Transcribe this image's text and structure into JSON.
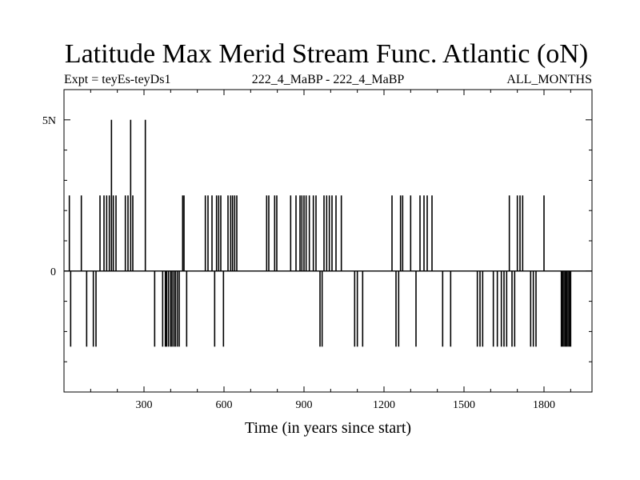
{
  "chart_data": {
    "type": "line",
    "title": "Latitude Max Merid Stream Func. Atlantic (oN)",
    "subtitle_left": "Expt = teyEs-teyDs1",
    "subtitle_center": "222_4_MaBP - 222_4_MaBP",
    "subtitle_right": "ALL_MONTHS",
    "xlabel": "Time (in years since start)",
    "ylabel": "",
    "xlim": [
      0,
      1980
    ],
    "ylim": [
      -4,
      6
    ],
    "x_ticks": [
      300,
      600,
      900,
      1200,
      1500,
      1800
    ],
    "x_tick_labels": [
      "300",
      "600",
      "900",
      "1200",
      "1500",
      "1800"
    ],
    "y_ticks": [
      0,
      5
    ],
    "y_tick_labels": [
      "0",
      "5N"
    ],
    "series": [
      {
        "name": "teyEs-teyDs1",
        "spikes": [
          {
            "x": 20,
            "y": 2.5
          },
          {
            "x": 25,
            "y": -2.5
          },
          {
            "x": 65,
            "y": 2.5
          },
          {
            "x": 85,
            "y": -2.5
          },
          {
            "x": 110,
            "y": -2.5
          },
          {
            "x": 120,
            "y": -2.5
          },
          {
            "x": 135,
            "y": 2.5
          },
          {
            "x": 150,
            "y": 2.5
          },
          {
            "x": 160,
            "y": 2.5
          },
          {
            "x": 170,
            "y": 2.5
          },
          {
            "x": 178,
            "y": 5
          },
          {
            "x": 185,
            "y": 2.5
          },
          {
            "x": 195,
            "y": 2.5
          },
          {
            "x": 230,
            "y": 2.5
          },
          {
            "x": 240,
            "y": 2.5
          },
          {
            "x": 250,
            "y": 5
          },
          {
            "x": 258,
            "y": 2.5
          },
          {
            "x": 305,
            "y": 5
          },
          {
            "x": 340,
            "y": -2.5
          },
          {
            "x": 370,
            "y": -2.5
          },
          {
            "x": 380,
            "y": -2.5
          },
          {
            "x": 385,
            "y": -2.5
          },
          {
            "x": 392,
            "y": -2.5
          },
          {
            "x": 400,
            "y": -2.5
          },
          {
            "x": 405,
            "y": -2.5
          },
          {
            "x": 412,
            "y": -2.5
          },
          {
            "x": 418,
            "y": -2.5
          },
          {
            "x": 425,
            "y": -2.5
          },
          {
            "x": 432,
            "y": -2.5
          },
          {
            "x": 445,
            "y": 2.5
          },
          {
            "x": 450,
            "y": 2.5
          },
          {
            "x": 460,
            "y": -2.5
          },
          {
            "x": 530,
            "y": 2.5
          },
          {
            "x": 540,
            "y": 2.5
          },
          {
            "x": 555,
            "y": 2.5
          },
          {
            "x": 565,
            "y": -2.5
          },
          {
            "x": 572,
            "y": 2.5
          },
          {
            "x": 580,
            "y": 2.5
          },
          {
            "x": 588,
            "y": 2.5
          },
          {
            "x": 598,
            "y": -2.5
          },
          {
            "x": 615,
            "y": 2.5
          },
          {
            "x": 625,
            "y": 2.5
          },
          {
            "x": 632,
            "y": 2.5
          },
          {
            "x": 640,
            "y": 2.5
          },
          {
            "x": 648,
            "y": 2.5
          },
          {
            "x": 760,
            "y": 2.5
          },
          {
            "x": 768,
            "y": 2.5
          },
          {
            "x": 790,
            "y": 2.5
          },
          {
            "x": 798,
            "y": 2.5
          },
          {
            "x": 850,
            "y": 2.5
          },
          {
            "x": 870,
            "y": 2.5
          },
          {
            "x": 885,
            "y": 2.5
          },
          {
            "x": 892,
            "y": 2.5
          },
          {
            "x": 900,
            "y": 2.5
          },
          {
            "x": 908,
            "y": 2.5
          },
          {
            "x": 920,
            "y": 2.5
          },
          {
            "x": 935,
            "y": 2.5
          },
          {
            "x": 945,
            "y": 2.5
          },
          {
            "x": 960,
            "y": -2.5
          },
          {
            "x": 968,
            "y": -2.5
          },
          {
            "x": 975,
            "y": 2.5
          },
          {
            "x": 985,
            "y": 2.5
          },
          {
            "x": 995,
            "y": 2.5
          },
          {
            "x": 1005,
            "y": 2.5
          },
          {
            "x": 1020,
            "y": 2.5
          },
          {
            "x": 1040,
            "y": 2.5
          },
          {
            "x": 1090,
            "y": -2.5
          },
          {
            "x": 1100,
            "y": -2.5
          },
          {
            "x": 1120,
            "y": -2.5
          },
          {
            "x": 1230,
            "y": 2.5
          },
          {
            "x": 1245,
            "y": -2.5
          },
          {
            "x": 1255,
            "y": -2.5
          },
          {
            "x": 1262,
            "y": 2.5
          },
          {
            "x": 1270,
            "y": 2.5
          },
          {
            "x": 1300,
            "y": 2.5
          },
          {
            "x": 1320,
            "y": -2.5
          },
          {
            "x": 1335,
            "y": 2.5
          },
          {
            "x": 1350,
            "y": 2.5
          },
          {
            "x": 1362,
            "y": 2.5
          },
          {
            "x": 1380,
            "y": 2.5
          },
          {
            "x": 1420,
            "y": -2.5
          },
          {
            "x": 1450,
            "y": -2.5
          },
          {
            "x": 1550,
            "y": -2.5
          },
          {
            "x": 1560,
            "y": -2.5
          },
          {
            "x": 1570,
            "y": -2.5
          },
          {
            "x": 1610,
            "y": -2.5
          },
          {
            "x": 1625,
            "y": -2.5
          },
          {
            "x": 1640,
            "y": -2.5
          },
          {
            "x": 1650,
            "y": -2.5
          },
          {
            "x": 1660,
            "y": -2.5
          },
          {
            "x": 1670,
            "y": 2.5
          },
          {
            "x": 1680,
            "y": -2.5
          },
          {
            "x": 1690,
            "y": -2.5
          },
          {
            "x": 1700,
            "y": 2.5
          },
          {
            "x": 1710,
            "y": 2.5
          },
          {
            "x": 1720,
            "y": 2.5
          },
          {
            "x": 1750,
            "y": -2.5
          },
          {
            "x": 1760,
            "y": -2.5
          },
          {
            "x": 1770,
            "y": -2.5
          },
          {
            "x": 1800,
            "y": 2.5
          },
          {
            "x": 1865,
            "y": -2.5
          },
          {
            "x": 1870,
            "y": -2.5
          },
          {
            "x": 1875,
            "y": -2.5
          },
          {
            "x": 1880,
            "y": -2.5
          },
          {
            "x": 1885,
            "y": -2.5
          },
          {
            "x": 1890,
            "y": -2.5
          },
          {
            "x": 1895,
            "y": -2.5
          },
          {
            "x": 1900,
            "y": -2.5
          }
        ]
      }
    ]
  }
}
